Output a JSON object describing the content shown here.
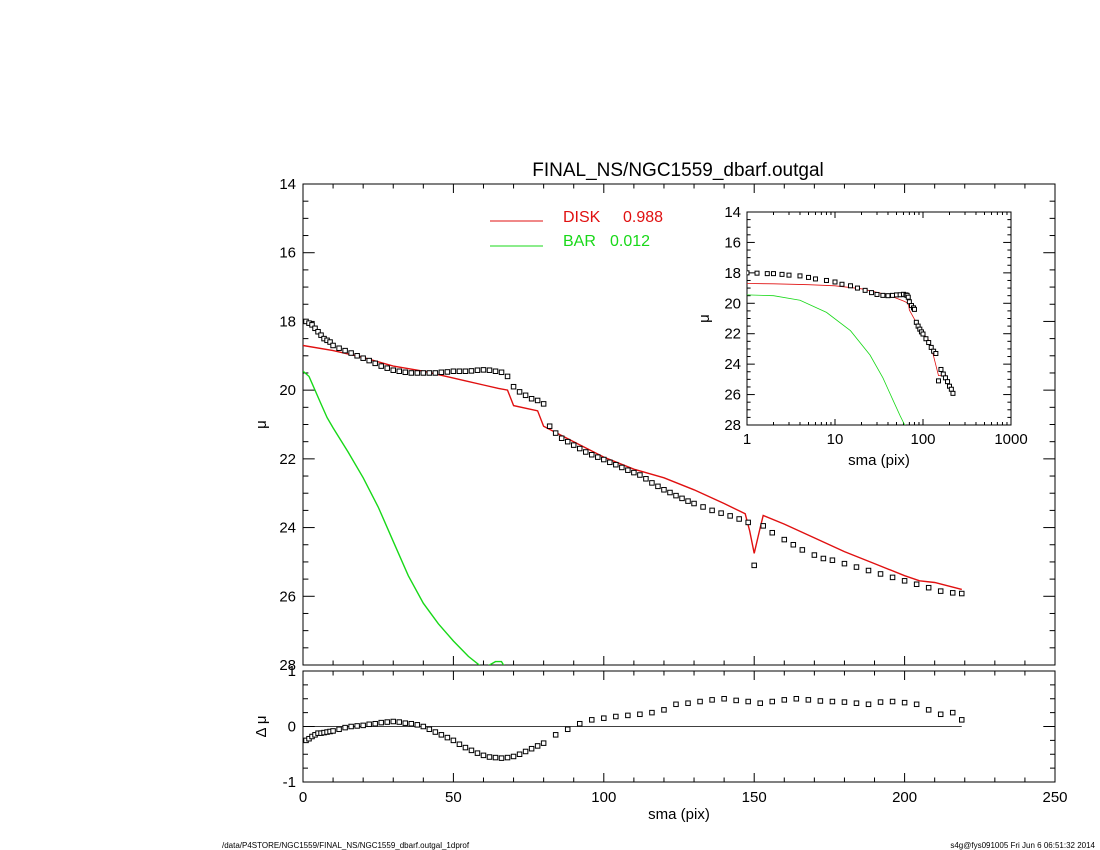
{
  "title": "FINAL_NS/NGC1559_dbarf.outgal",
  "footer_left": "/data/P4STORE/NGC1559/FINAL_NS/NGC1559_dbarf.outgal_1dprof",
  "footer_right": "s4g@fys091005  Fri Jun  6 06:51:32 2014",
  "colors": {
    "disk": "#e01010",
    "bar": "#18d818",
    "data": "#000000"
  },
  "chart_data": [
    {
      "id": "main",
      "type": "line",
      "ylabel": "μ",
      "xlim": [
        0,
        250
      ],
      "ylim": [
        28,
        14
      ],
      "y_ticks": [
        "14",
        "16",
        "18",
        "20",
        "22",
        "24",
        "26",
        "28"
      ],
      "legend": {
        "placement": "top",
        "entries": [
          {
            "name": "DISK",
            "value": "0.988"
          },
          {
            "name": "BAR",
            "value": "0.012"
          }
        ]
      },
      "series": [
        {
          "name": "DISK",
          "style": "line",
          "color_key": "disk",
          "x": [
            0,
            10,
            20,
            30,
            40,
            50,
            60,
            65,
            68,
            70,
            78,
            80,
            90,
            100,
            110,
            120,
            130,
            140,
            147,
            148.5,
            150,
            152,
            153,
            160,
            170,
            180,
            190,
            200,
            205,
            210,
            219
          ],
          "y": [
            18.7,
            18.85,
            19.05,
            19.3,
            19.45,
            19.65,
            19.85,
            19.95,
            20.0,
            20.45,
            20.6,
            21.05,
            21.5,
            21.95,
            22.3,
            22.55,
            22.9,
            23.3,
            23.6,
            24.1,
            24.75,
            24.0,
            23.65,
            23.9,
            24.3,
            24.7,
            25.05,
            25.4,
            25.55,
            25.6,
            25.8
          ]
        },
        {
          "name": "BAR",
          "style": "line",
          "color_key": "bar",
          "x": [
            0,
            2,
            4,
            6,
            8,
            10,
            15,
            20,
            25,
            30,
            35,
            40,
            45,
            50,
            55,
            60,
            62,
            64,
            66,
            67
          ],
          "y": [
            19.45,
            19.6,
            20.0,
            20.4,
            20.8,
            21.1,
            21.8,
            22.55,
            23.4,
            24.4,
            25.4,
            26.2,
            26.8,
            27.3,
            27.75,
            28.1,
            28.0,
            27.9,
            27.9,
            28.05
          ]
        },
        {
          "name": "data",
          "style": "markers",
          "color_key": "data",
          "x": [
            1,
            2,
            3,
            4,
            5,
            6,
            7,
            8,
            9,
            10,
            12,
            14,
            16,
            18,
            20,
            22,
            24,
            26,
            28,
            30,
            32,
            34,
            36,
            38,
            40,
            42,
            44,
            46,
            48,
            50,
            52,
            54,
            56,
            58,
            60,
            62,
            64,
            66,
            68,
            70,
            72,
            74,
            76,
            78,
            80,
            82,
            84,
            86,
            88,
            90,
            92,
            94,
            96,
            98,
            100,
            102,
            104,
            106,
            108,
            110,
            112,
            114,
            116,
            118,
            120,
            122,
            124,
            126,
            128,
            130,
            133,
            136,
            139,
            142,
            145,
            148,
            150,
            153,
            156,
            160,
            163,
            166,
            170,
            173,
            176,
            180,
            184,
            188,
            192,
            196,
            200,
            204,
            208,
            212,
            216,
            219
          ],
          "y": [
            18.0,
            18.05,
            18.1,
            18.2,
            18.3,
            18.4,
            18.5,
            18.55,
            18.6,
            18.7,
            18.78,
            18.85,
            18.92,
            19.0,
            19.07,
            19.14,
            19.22,
            19.3,
            19.36,
            19.42,
            19.45,
            19.48,
            19.5,
            19.5,
            19.5,
            19.5,
            19.5,
            19.48,
            19.47,
            19.45,
            19.45,
            19.45,
            19.44,
            19.42,
            19.41,
            19.42,
            19.45,
            19.48,
            19.6,
            19.9,
            20.05,
            20.15,
            20.25,
            20.3,
            20.4,
            21.05,
            21.25,
            21.4,
            21.5,
            21.6,
            21.7,
            21.8,
            21.88,
            21.95,
            22.02,
            22.1,
            22.17,
            22.25,
            22.33,
            22.4,
            22.47,
            22.58,
            22.7,
            22.8,
            22.9,
            22.98,
            23.07,
            23.15,
            23.23,
            23.3,
            23.4,
            23.5,
            23.58,
            23.66,
            23.75,
            23.85,
            25.1,
            23.95,
            24.15,
            24.35,
            24.5,
            24.65,
            24.8,
            24.9,
            24.95,
            25.05,
            25.15,
            25.25,
            25.35,
            25.45,
            25.55,
            25.65,
            25.75,
            25.85,
            25.9,
            25.92
          ]
        }
      ]
    },
    {
      "id": "residual",
      "type": "scatter",
      "xlabel": "sma (pix)",
      "ylabel": "Δ μ",
      "xlim": [
        0,
        250
      ],
      "ylim": [
        -1,
        1
      ],
      "x_ticks": [
        "0",
        "50",
        "100",
        "150",
        "200",
        "250"
      ],
      "y_ticks": [
        "1",
        "0",
        "-1"
      ],
      "zero_line": {
        "x": [
          0,
          219
        ],
        "y": 0
      },
      "series": [
        {
          "name": "residual",
          "style": "markers",
          "color_key": "data",
          "x": [
            1,
            2,
            3,
            4,
            5,
            6,
            7,
            8,
            9,
            10,
            12,
            14,
            16,
            18,
            20,
            22,
            24,
            26,
            28,
            30,
            32,
            34,
            36,
            38,
            40,
            42,
            44,
            46,
            48,
            50,
            52,
            54,
            56,
            58,
            60,
            62,
            64,
            66,
            68,
            70,
            72,
            74,
            76,
            78,
            80,
            84,
            88,
            92,
            96,
            100,
            104,
            108,
            112,
            116,
            120,
            124,
            128,
            132,
            136,
            140,
            144,
            148,
            152,
            156,
            160,
            164,
            168,
            172,
            176,
            180,
            184,
            188,
            192,
            196,
            200,
            204,
            208,
            212,
            216,
            219
          ],
          "y": [
            -0.25,
            -0.22,
            -0.18,
            -0.15,
            -0.12,
            -0.12,
            -0.11,
            -0.1,
            -0.09,
            -0.08,
            -0.05,
            -0.02,
            0.0,
            0.01,
            0.02,
            0.04,
            0.05,
            0.07,
            0.08,
            0.09,
            0.08,
            0.06,
            0.05,
            0.03,
            0.0,
            -0.05,
            -0.1,
            -0.15,
            -0.2,
            -0.25,
            -0.32,
            -0.38,
            -0.43,
            -0.48,
            -0.52,
            -0.55,
            -0.56,
            -0.57,
            -0.56,
            -0.54,
            -0.5,
            -0.45,
            -0.4,
            -0.35,
            -0.3,
            -0.15,
            -0.05,
            0.05,
            0.12,
            0.15,
            0.18,
            0.2,
            0.22,
            0.25,
            0.3,
            0.4,
            0.42,
            0.45,
            0.48,
            0.5,
            0.47,
            0.45,
            0.42,
            0.45,
            0.48,
            0.5,
            0.48,
            0.46,
            0.45,
            0.44,
            0.42,
            0.4,
            0.44,
            0.45,
            0.43,
            0.4,
            0.3,
            0.22,
            0.25,
            0.12
          ]
        }
      ]
    },
    {
      "id": "inset",
      "type": "line",
      "xlabel": "sma (pix)",
      "ylabel": "μ",
      "xscale": "log",
      "xlim": [
        1,
        1000
      ],
      "ylim": [
        28,
        14
      ],
      "x_ticks": [
        "1",
        "10",
        "100",
        "1000"
      ],
      "y_ticks": [
        "14",
        "16",
        "18",
        "20",
        "22",
        "24",
        "26",
        "28"
      ],
      "series": [
        {
          "name": "DISK",
          "style": "line",
          "color_key": "disk",
          "x": [
            1,
            2,
            5,
            10,
            20,
            40,
            60,
            68,
            70,
            80,
            100,
            120,
            150,
            180,
            219
          ],
          "y": [
            18.7,
            18.72,
            18.78,
            18.85,
            19.05,
            19.45,
            19.85,
            20.0,
            20.45,
            21.05,
            21.95,
            22.55,
            24.75,
            24.7,
            25.8
          ]
        },
        {
          "name": "BAR",
          "style": "line",
          "color_key": "bar",
          "x": [
            1,
            2,
            4,
            8,
            15,
            25,
            35,
            45,
            55,
            62,
            67
          ],
          "y": [
            19.45,
            19.5,
            19.8,
            20.6,
            21.8,
            23.4,
            24.9,
            26.3,
            27.4,
            28.0,
            28.05
          ]
        },
        {
          "name": "data",
          "style": "markers",
          "color_key": "data",
          "x": [
            1,
            1.3,
            1.7,
            2,
            2.5,
            3,
            4,
            5,
            6,
            8,
            10,
            12,
            15,
            18,
            22,
            26,
            30,
            35,
            40,
            45,
            50,
            55,
            60,
            64,
            66,
            68,
            70,
            74,
            78,
            80,
            84,
            88,
            92,
            96,
            100,
            108,
            116,
            124,
            132,
            140,
            150,
            160,
            170,
            180,
            190,
            200,
            210,
            219
          ],
          "y": [
            18.0,
            18.02,
            18.05,
            18.05,
            18.1,
            18.15,
            18.2,
            18.3,
            18.4,
            18.5,
            18.6,
            18.75,
            18.85,
            19.0,
            19.15,
            19.3,
            19.42,
            19.48,
            19.5,
            19.48,
            19.45,
            19.44,
            19.41,
            19.45,
            19.48,
            19.6,
            19.9,
            20.15,
            20.3,
            20.4,
            21.25,
            21.5,
            21.7,
            21.88,
            22.02,
            22.33,
            22.58,
            22.9,
            23.15,
            23.3,
            25.1,
            24.35,
            24.65,
            24.9,
            25.15,
            25.45,
            25.65,
            25.92
          ]
        }
      ]
    }
  ]
}
